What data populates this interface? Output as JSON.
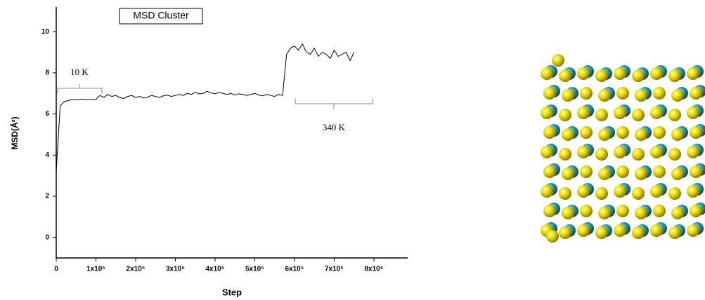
{
  "chart_data": {
    "type": "line",
    "title": "MSD Cluster",
    "xlabel": "Step",
    "ylabel": "MSD(Å²)",
    "annotations": [
      "10 K",
      "340 K"
    ],
    "x": [
      0,
      10000,
      20000,
      30000,
      40000,
      50000,
      60000,
      70000,
      80000,
      90000,
      100000,
      110000,
      120000,
      130000,
      140000,
      150000,
      160000,
      170000,
      180000,
      190000,
      200000,
      210000,
      220000,
      230000,
      240000,
      250000,
      260000,
      270000,
      280000,
      290000,
      300000,
      310000,
      320000,
      330000,
      340000,
      350000,
      360000,
      370000,
      380000,
      390000,
      400000,
      410000,
      420000,
      430000,
      440000,
      450000,
      460000,
      470000,
      480000,
      490000,
      500000,
      510000,
      520000,
      530000,
      540000,
      550000,
      560000,
      570000,
      580000,
      590000,
      600000,
      610000,
      620000,
      630000,
      640000,
      650000,
      660000,
      670000,
      680000,
      690000,
      700000,
      710000,
      720000,
      730000,
      740000,
      750000
    ],
    "series": [
      {
        "color": "#000000",
        "values": [
          3.2,
          6.4,
          6.6,
          6.65,
          6.7,
          6.68,
          6.72,
          6.7,
          6.69,
          6.71,
          6.7,
          6.9,
          6.8,
          6.95,
          6.85,
          6.9,
          6.8,
          6.75,
          6.85,
          6.9,
          6.8,
          6.85,
          6.78,
          6.82,
          6.9,
          6.85,
          6.8,
          6.88,
          6.92,
          6.85,
          6.9,
          6.95,
          6.9,
          7.0,
          6.95,
          7.05,
          6.98,
          7.0,
          7.1,
          7.02,
          6.98,
          7.05,
          7.0,
          6.95,
          7.0,
          6.92,
          6.98,
          6.95,
          6.9,
          6.95,
          7.0,
          6.92,
          6.88,
          6.95,
          6.9,
          6.85,
          6.95,
          6.9,
          8.9,
          9.2,
          9.3,
          9.1,
          9.4,
          9.0,
          8.9,
          9.2,
          8.8,
          9.0,
          8.9,
          8.7,
          9.1,
          8.8,
          8.9,
          9.0,
          8.6,
          9.0
        ]
      }
    ],
    "xlim": [
      0,
      885000
    ],
    "ylim": [
      -1,
      11.2
    ],
    "xticks": [
      0,
      {
        "value": 100000,
        "label": "1x10⁵"
      },
      {
        "value": 200000,
        "label": "2x10⁵"
      },
      {
        "value": 300000,
        "label": "3x10⁵"
      },
      {
        "value": 400000,
        "label": "4x10⁵"
      },
      {
        "value": 500000,
        "label": "5x10⁵"
      },
      {
        "value": 600000,
        "label": "6x10⁵"
      },
      {
        "value": 700000,
        "label": "7x10⁵"
      },
      {
        "value": 800000,
        "label": "8x10⁵"
      }
    ],
    "yticks": [
      0,
      2,
      4,
      6,
      8,
      10
    ],
    "grid": false
  }
}
